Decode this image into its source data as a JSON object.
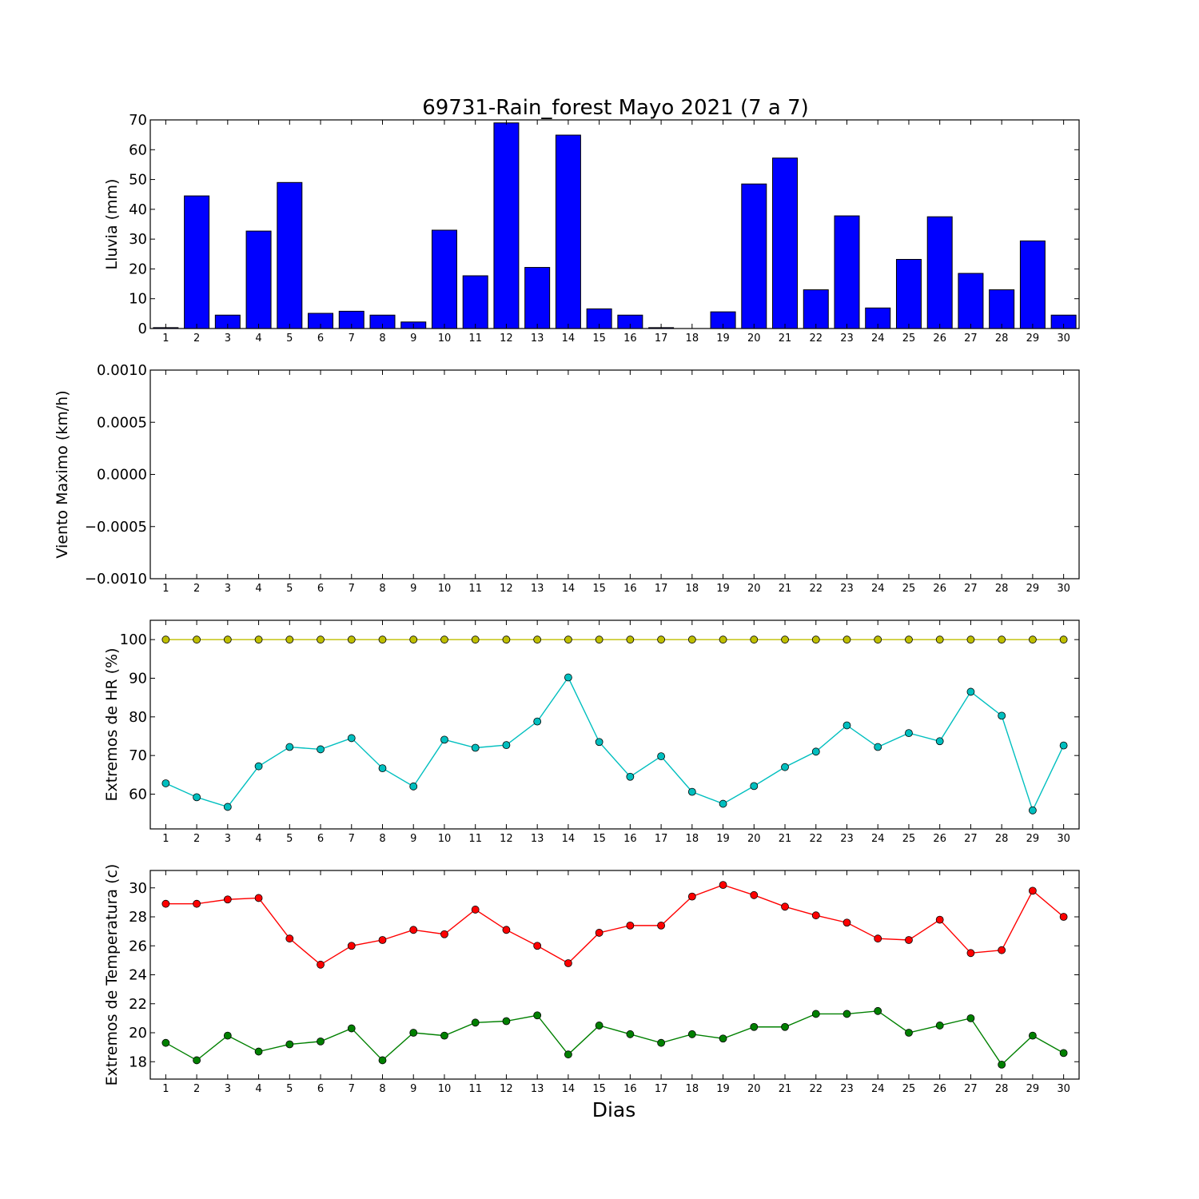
{
  "figure": {
    "title": "69731-Rain_forest Mayo 2021  (7 a 7)",
    "xlabel": "Dias"
  },
  "chart_data": [
    {
      "type": "bar",
      "ylabel": "Lluvia (mm)",
      "ylim": [
        0,
        70
      ],
      "yticks": [
        0,
        10,
        20,
        30,
        40,
        50,
        60,
        70
      ],
      "ytick_labels": [
        "0",
        "10",
        "20",
        "30",
        "40",
        "50",
        "60",
        "70"
      ],
      "xlim": [
        0.5,
        30.5
      ],
      "categories": [
        1,
        2,
        3,
        4,
        5,
        6,
        7,
        8,
        9,
        10,
        11,
        12,
        13,
        14,
        15,
        16,
        17,
        18,
        19,
        20,
        21,
        22,
        23,
        24,
        25,
        26,
        27,
        28,
        29,
        30
      ],
      "series": [
        {
          "color": "#0000ff",
          "values": [
            0.3,
            44.5,
            4.5,
            32.7,
            49.0,
            5.1,
            5.8,
            4.5,
            2.2,
            33.0,
            17.7,
            69.0,
            20.5,
            64.9,
            6.6,
            4.5,
            0.3,
            0.0,
            5.6,
            48.5,
            57.2,
            13.0,
            37.8,
            6.9,
            23.2,
            37.5,
            18.5,
            13.0,
            29.4,
            4.5
          ]
        }
      ]
    },
    {
      "type": "line",
      "ylabel": "Viento Maximo (km/h)",
      "ylim": [
        -0.001,
        0.001
      ],
      "yticks": [
        -0.001,
        -0.0005,
        0,
        0.0005,
        0.001
      ],
      "ytick_labels": [
        "−0.0010",
        "−0.0005",
        "0.0000",
        "0.0005",
        "0.0010"
      ],
      "xlim": [
        0.5,
        30.5
      ],
      "categories": [
        1,
        2,
        3,
        4,
        5,
        6,
        7,
        8,
        9,
        10,
        11,
        12,
        13,
        14,
        15,
        16,
        17,
        18,
        19,
        20,
        21,
        22,
        23,
        24,
        25,
        26,
        27,
        28,
        29,
        30
      ],
      "series": []
    },
    {
      "type": "line",
      "ylabel": "Extremos de HR (%)",
      "ylim": [
        51,
        105
      ],
      "yticks": [
        60,
        70,
        80,
        90,
        100
      ],
      "ytick_labels": [
        "60",
        "70",
        "80",
        "90",
        "100"
      ],
      "xlim": [
        0.5,
        30.5
      ],
      "categories": [
        1,
        2,
        3,
        4,
        5,
        6,
        7,
        8,
        9,
        10,
        11,
        12,
        13,
        14,
        15,
        16,
        17,
        18,
        19,
        20,
        21,
        22,
        23,
        24,
        25,
        26,
        27,
        28,
        29,
        30
      ],
      "series": [
        {
          "color": "#bfbf00",
          "values": [
            100,
            100,
            100,
            100,
            100,
            100,
            100,
            100,
            100,
            100,
            100,
            100,
            100,
            100,
            100,
            100,
            100,
            100,
            100,
            100,
            100,
            100,
            100,
            100,
            100,
            100,
            100,
            100,
            100,
            100
          ]
        },
        {
          "color": "#00bfbf",
          "values": [
            62.8,
            59.2,
            56.7,
            67.2,
            72.2,
            71.6,
            74.5,
            66.7,
            62.0,
            74.1,
            72.0,
            72.7,
            78.8,
            90.2,
            73.5,
            64.5,
            69.8,
            60.6,
            57.5,
            62.1,
            67.0,
            71.0,
            77.8,
            72.2,
            75.8,
            73.7,
            86.5,
            80.3,
            55.8,
            72.6
          ]
        }
      ]
    },
    {
      "type": "line",
      "ylabel": "Extremos de Temperatura (c)",
      "ylim": [
        16.8,
        31.2
      ],
      "yticks": [
        18,
        20,
        22,
        24,
        26,
        28,
        30
      ],
      "ytick_labels": [
        "18",
        "20",
        "22",
        "24",
        "26",
        "28",
        "30"
      ],
      "xlim": [
        0.5,
        30.5
      ],
      "categories": [
        1,
        2,
        3,
        4,
        5,
        6,
        7,
        8,
        9,
        10,
        11,
        12,
        13,
        14,
        15,
        16,
        17,
        18,
        19,
        20,
        21,
        22,
        23,
        24,
        25,
        26,
        27,
        28,
        29,
        30
      ],
      "series": [
        {
          "color": "#ff0000",
          "values": [
            28.9,
            28.9,
            29.2,
            29.3,
            26.5,
            24.7,
            26.0,
            26.4,
            27.1,
            26.8,
            28.5,
            27.1,
            26.0,
            24.8,
            26.9,
            27.4,
            27.4,
            29.4,
            30.2,
            29.5,
            28.7,
            28.1,
            27.6,
            26.5,
            26.4,
            27.8,
            25.5,
            25.7,
            29.8,
            28.0
          ]
        },
        {
          "color": "#008000",
          "values": [
            19.3,
            18.1,
            19.8,
            18.7,
            19.2,
            19.4,
            20.3,
            18.1,
            20.0,
            19.8,
            20.7,
            20.8,
            21.2,
            18.5,
            20.5,
            19.9,
            19.3,
            19.9,
            19.6,
            20.4,
            20.4,
            21.3,
            21.3,
            21.5,
            20.0,
            20.5,
            21.0,
            17.8,
            19.8,
            18.6
          ]
        }
      ]
    }
  ]
}
